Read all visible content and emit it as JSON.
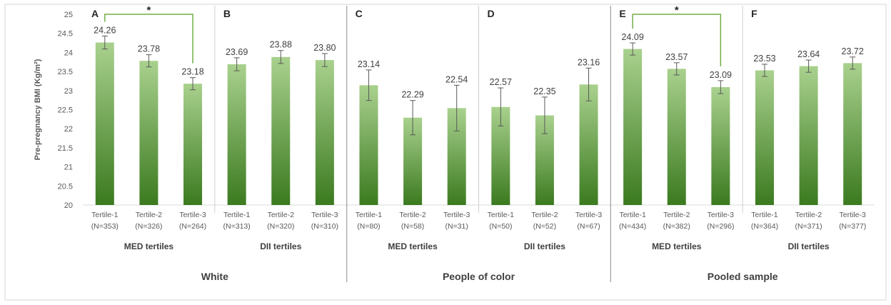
{
  "chart_data": {
    "type": "bar",
    "ylabel": "Pre-pregnancy BMI (Kg/m²)",
    "ylim": [
      20,
      25
    ],
    "yticks": [
      "20",
      "20.5",
      "21",
      "21.5",
      "22",
      "22.5",
      "23",
      "23.5",
      "24",
      "24.5",
      "25"
    ],
    "error_bars": true,
    "colors": {
      "bar_top": "#a9d18e",
      "bar_bottom": "#3b7a1f",
      "bracket": "#70ad47"
    },
    "populations": [
      {
        "name": "White"
      },
      {
        "name": "People of color"
      },
      {
        "name": "Pooled sample"
      }
    ],
    "panels": [
      {
        "letter": "A",
        "population": "White",
        "group": "MED tertiles",
        "categories": [
          "Tertile-1",
          "Tertile-2",
          "Tertile-3"
        ],
        "ns": [
          "(N=353)",
          "(N=326)",
          "(N=264)"
        ],
        "values": [
          24.26,
          23.78,
          23.18
        ],
        "value_labels": [
          "24.26",
          "23.78",
          "23.18"
        ],
        "error": [
          0.17,
          0.16,
          0.16
        ],
        "significance": {
          "from": 0,
          "to": 2,
          "label": "*"
        }
      },
      {
        "letter": "B",
        "population": "White",
        "group": "DII tertiles",
        "categories": [
          "Tertile-1",
          "Tertile-2",
          "Tertile-3"
        ],
        "ns": [
          "(N=313)",
          "(N=320)",
          "(N=310)"
        ],
        "values": [
          23.69,
          23.88,
          23.8
        ],
        "value_labels": [
          "23.69",
          "23.88",
          "23.80"
        ],
        "error": [
          0.17,
          0.17,
          0.17
        ]
      },
      {
        "letter": "C",
        "population": "People of color",
        "group": "MED tertiles",
        "categories": [
          "Tertile-1",
          "Tertile-2",
          "Tertile-3"
        ],
        "ns": [
          "(N=80)",
          "(N=58)",
          "(N=31)"
        ],
        "values": [
          23.14,
          22.29,
          22.54
        ],
        "value_labels": [
          "23.14",
          "22.29",
          "22.54"
        ],
        "error": [
          0.4,
          0.45,
          0.6
        ]
      },
      {
        "letter": "D",
        "population": "People of color",
        "group": "DII tertiles",
        "categories": [
          "Tertile-1",
          "Tertile-2",
          "Tertile-3"
        ],
        "ns": [
          "(N=50)",
          "(N=52)",
          "(N=67)"
        ],
        "values": [
          22.57,
          22.35,
          23.16
        ],
        "value_labels": [
          "22.57",
          "22.35",
          "23.16"
        ],
        "error": [
          0.5,
          0.48,
          0.43
        ]
      },
      {
        "letter": "E",
        "population": "Pooled sample",
        "group": "MED tertiles",
        "categories": [
          "Tertile-1",
          "Tertile-2",
          "Tertile-3"
        ],
        "ns": [
          "(N=434)",
          "(N=382)",
          "(N=296)"
        ],
        "values": [
          24.09,
          23.57,
          23.09
        ],
        "value_labels": [
          "24.09",
          "23.57",
          "23.09"
        ],
        "error": [
          0.16,
          0.16,
          0.17
        ],
        "significance": {
          "from": 0,
          "to": 2,
          "label": "*"
        }
      },
      {
        "letter": "F",
        "population": "Pooled sample",
        "group": "DII tertiles",
        "categories": [
          "Tertile-1",
          "Tertile-2",
          "Tertile-3"
        ],
        "ns": [
          "(N=364)",
          "(N=371)",
          "(N=377)"
        ],
        "values": [
          23.53,
          23.64,
          23.72
        ],
        "value_labels": [
          "23.53",
          "23.64",
          "23.72"
        ],
        "error": [
          0.16,
          0.16,
          0.16
        ]
      }
    ]
  }
}
